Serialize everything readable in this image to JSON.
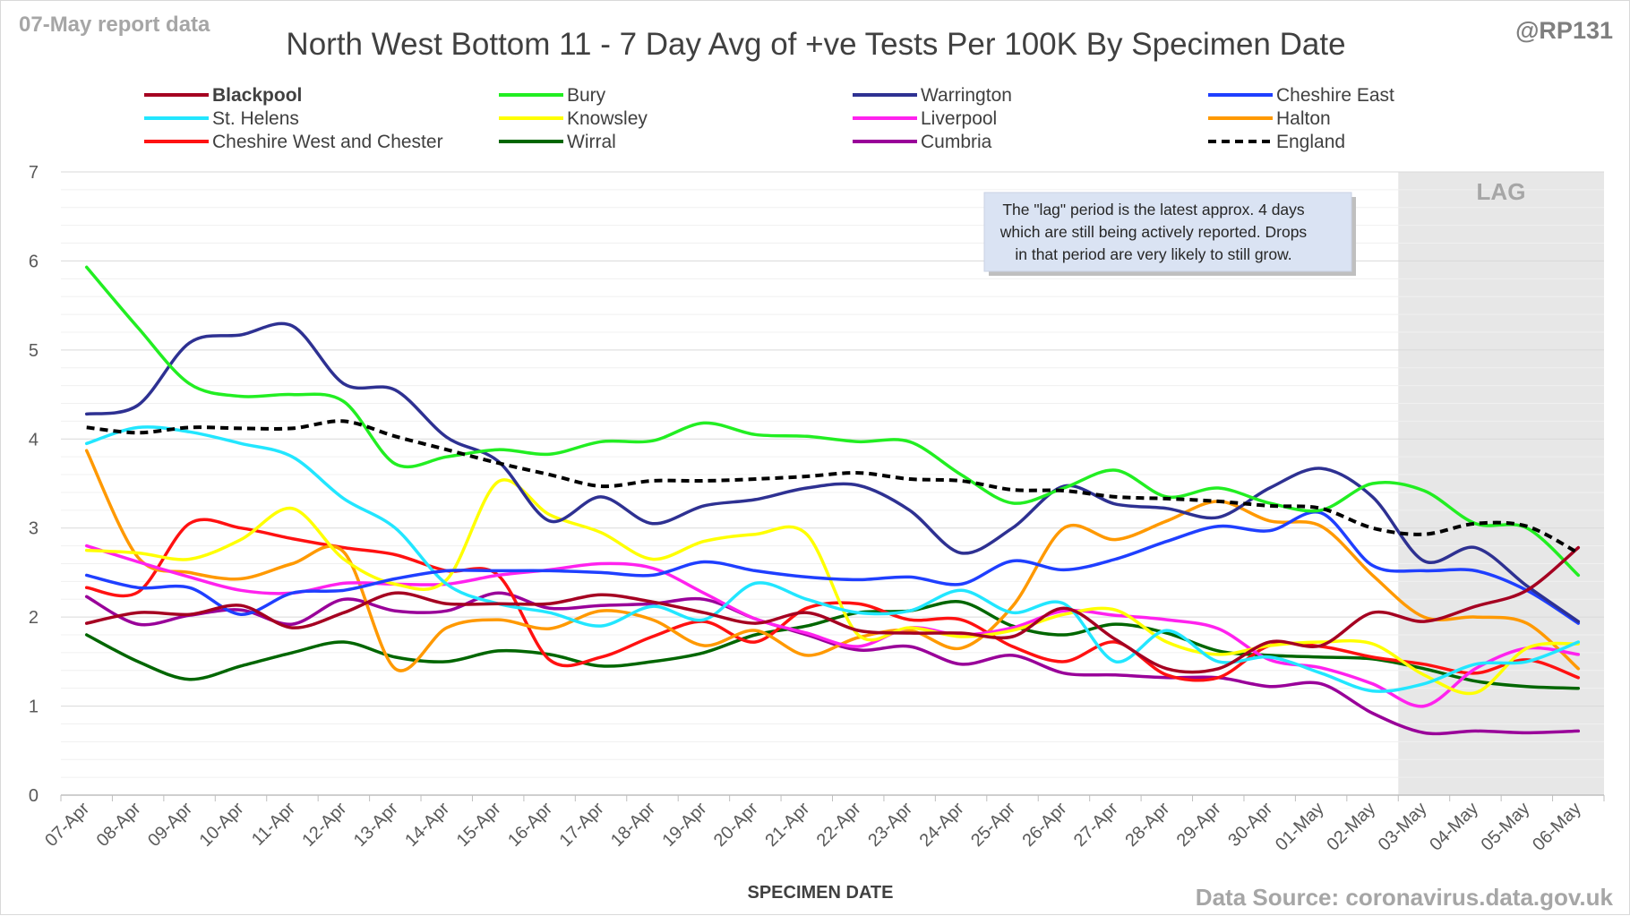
{
  "header": {
    "report_tag": "07-May report data",
    "handle": "@RP131",
    "source": "Data Source: coronavirus.data.gov.uk"
  },
  "annotation": {
    "lag_label": "LAG",
    "note_lines": [
      "The \"lag\" period is the latest approx. 4 days",
      "which are still being actively reported.  Drops",
      "in that period are very likely to still grow."
    ]
  },
  "chart_data": {
    "type": "line",
    "title": "North West Bottom 11 - 7 Day Avg of +ve Tests Per 100K By Specimen Date",
    "xlabel": "SPECIMEN DATE",
    "ylabel": "",
    "ylim": [
      0,
      7
    ],
    "yticks": [
      "0",
      "1",
      "2",
      "3",
      "4",
      "5",
      "6",
      "7"
    ],
    "grid": true,
    "legend_position": "top",
    "lag_region": [
      "02-May",
      "06-May"
    ],
    "categories": [
      "07-Apr",
      "08-Apr",
      "09-Apr",
      "10-Apr",
      "11-Apr",
      "12-Apr",
      "13-Apr",
      "14-Apr",
      "15-Apr",
      "16-Apr",
      "17-Apr",
      "18-Apr",
      "19-Apr",
      "20-Apr",
      "21-Apr",
      "22-Apr",
      "23-Apr",
      "24-Apr",
      "25-Apr",
      "26-Apr",
      "27-Apr",
      "28-Apr",
      "29-Apr",
      "30-Apr",
      "01-May",
      "02-May",
      "03-May",
      "04-May",
      "05-May",
      "06-May"
    ],
    "series": [
      {
        "name": "Blackpool",
        "color": "#a50021",
        "bold": true,
        "dashed": false,
        "values": [
          1.93,
          2.05,
          2.03,
          2.13,
          1.88,
          2.05,
          2.27,
          2.15,
          2.15,
          2.15,
          2.25,
          2.17,
          2.05,
          1.93,
          2.05,
          1.85,
          1.82,
          1.82,
          1.78,
          2.1,
          1.75,
          1.42,
          1.42,
          1.72,
          1.68,
          2.05,
          1.95,
          2.12,
          2.3,
          2.78
        ]
      },
      {
        "name": "Bury",
        "color": "#22ee22",
        "bold": false,
        "dashed": false,
        "values": [
          5.93,
          5.25,
          4.62,
          4.48,
          4.5,
          4.42,
          3.72,
          3.8,
          3.88,
          3.83,
          3.97,
          3.98,
          4.18,
          4.05,
          4.03,
          3.97,
          3.97,
          3.6,
          3.28,
          3.45,
          3.65,
          3.35,
          3.45,
          3.28,
          3.2,
          3.5,
          3.42,
          3.05,
          3.0,
          2.47
        ]
      },
      {
        "name": "Warrington",
        "color": "#2e3192",
        "bold": false,
        "dashed": false,
        "values": [
          4.28,
          4.38,
          5.08,
          5.17,
          5.27,
          4.62,
          4.55,
          4.02,
          3.75,
          3.08,
          3.35,
          3.05,
          3.25,
          3.32,
          3.45,
          3.48,
          3.2,
          2.72,
          3.0,
          3.47,
          3.27,
          3.22,
          3.12,
          3.45,
          3.67,
          3.35,
          2.63,
          2.78,
          2.35,
          1.95
        ]
      },
      {
        "name": "Cheshire East",
        "color": "#1f3fff",
        "bold": false,
        "dashed": false,
        "values": [
          2.47,
          2.33,
          2.33,
          2.03,
          2.27,
          2.3,
          2.43,
          2.52,
          2.52,
          2.52,
          2.5,
          2.47,
          2.62,
          2.52,
          2.45,
          2.42,
          2.45,
          2.37,
          2.63,
          2.53,
          2.65,
          2.85,
          3.02,
          2.97,
          3.17,
          2.58,
          2.52,
          2.52,
          2.3,
          1.93
        ]
      },
      {
        "name": "St. Helens",
        "color": "#22e6ff",
        "bold": false,
        "dashed": false,
        "values": [
          3.95,
          4.13,
          4.08,
          3.95,
          3.8,
          3.33,
          3.0,
          2.37,
          2.15,
          2.05,
          1.9,
          2.12,
          1.97,
          2.38,
          2.2,
          2.05,
          2.07,
          2.3,
          2.05,
          2.15,
          1.5,
          1.85,
          1.5,
          1.55,
          1.37,
          1.17,
          1.25,
          1.47,
          1.5,
          1.72
        ]
      },
      {
        "name": "Knowsley",
        "color": "#ffff00",
        "bold": false,
        "dashed": false,
        "values": [
          2.75,
          2.72,
          2.65,
          2.87,
          3.22,
          2.65,
          2.37,
          2.42,
          3.52,
          3.15,
          2.95,
          2.65,
          2.85,
          2.93,
          2.93,
          1.8,
          1.88,
          1.78,
          1.85,
          2.03,
          2.08,
          1.72,
          1.58,
          1.68,
          1.72,
          1.7,
          1.35,
          1.15,
          1.65,
          1.7
        ]
      },
      {
        "name": "Liverpool",
        "color": "#ff22ee",
        "bold": false,
        "dashed": false,
        "values": [
          2.8,
          2.62,
          2.45,
          2.3,
          2.27,
          2.38,
          2.37,
          2.37,
          2.47,
          2.53,
          2.6,
          2.55,
          2.27,
          1.98,
          1.82,
          1.67,
          1.88,
          1.8,
          1.88,
          2.07,
          2.02,
          1.97,
          1.87,
          1.52,
          1.43,
          1.25,
          1.0,
          1.42,
          1.65,
          1.58
        ]
      },
      {
        "name": "Halton",
        "color": "#ff9900",
        "bold": false,
        "dashed": false,
        "values": [
          3.87,
          2.67,
          2.5,
          2.43,
          2.6,
          2.73,
          1.42,
          1.88,
          1.97,
          1.87,
          2.07,
          1.97,
          1.68,
          1.85,
          1.57,
          1.77,
          1.85,
          1.65,
          2.12,
          3.0,
          2.87,
          3.08,
          3.3,
          3.08,
          3.02,
          2.47,
          2.0,
          2.0,
          1.93,
          1.42
        ]
      },
      {
        "name": "Cheshire West and Chester",
        "color": "#ff1111",
        "bold": false,
        "dashed": false,
        "values": [
          2.33,
          2.28,
          3.05,
          3.0,
          2.88,
          2.78,
          2.7,
          2.52,
          2.47,
          1.52,
          1.55,
          1.78,
          1.95,
          1.72,
          2.1,
          2.15,
          1.97,
          1.97,
          1.67,
          1.5,
          1.72,
          1.35,
          1.32,
          1.68,
          1.67,
          1.55,
          1.47,
          1.37,
          1.52,
          1.32
        ]
      },
      {
        "name": "Wirral",
        "color": "#006600",
        "bold": false,
        "dashed": false,
        "values": [
          1.8,
          1.5,
          1.3,
          1.45,
          1.6,
          1.72,
          1.55,
          1.5,
          1.62,
          1.58,
          1.45,
          1.5,
          1.6,
          1.8,
          1.9,
          2.05,
          2.07,
          2.17,
          1.9,
          1.8,
          1.92,
          1.82,
          1.62,
          1.57,
          1.55,
          1.53,
          1.42,
          1.28,
          1.22,
          1.2
        ]
      },
      {
        "name": "Cumbria",
        "color": "#990099",
        "bold": false,
        "dashed": false,
        "values": [
          2.23,
          1.92,
          2.02,
          2.08,
          1.92,
          2.2,
          2.07,
          2.07,
          2.27,
          2.1,
          2.13,
          2.15,
          2.2,
          1.98,
          1.8,
          1.63,
          1.67,
          1.47,
          1.57,
          1.37,
          1.35,
          1.32,
          1.32,
          1.22,
          1.25,
          0.92,
          0.7,
          0.72,
          0.7,
          0.72
        ]
      },
      {
        "name": "England",
        "color": "#000000",
        "bold": false,
        "dashed": true,
        "values": [
          4.13,
          4.07,
          4.13,
          4.12,
          4.12,
          4.2,
          4.03,
          3.88,
          3.73,
          3.6,
          3.47,
          3.53,
          3.53,
          3.55,
          3.58,
          3.62,
          3.55,
          3.53,
          3.43,
          3.42,
          3.35,
          3.33,
          3.3,
          3.25,
          3.22,
          3.0,
          2.93,
          3.05,
          3.02,
          2.72
        ]
      }
    ]
  }
}
